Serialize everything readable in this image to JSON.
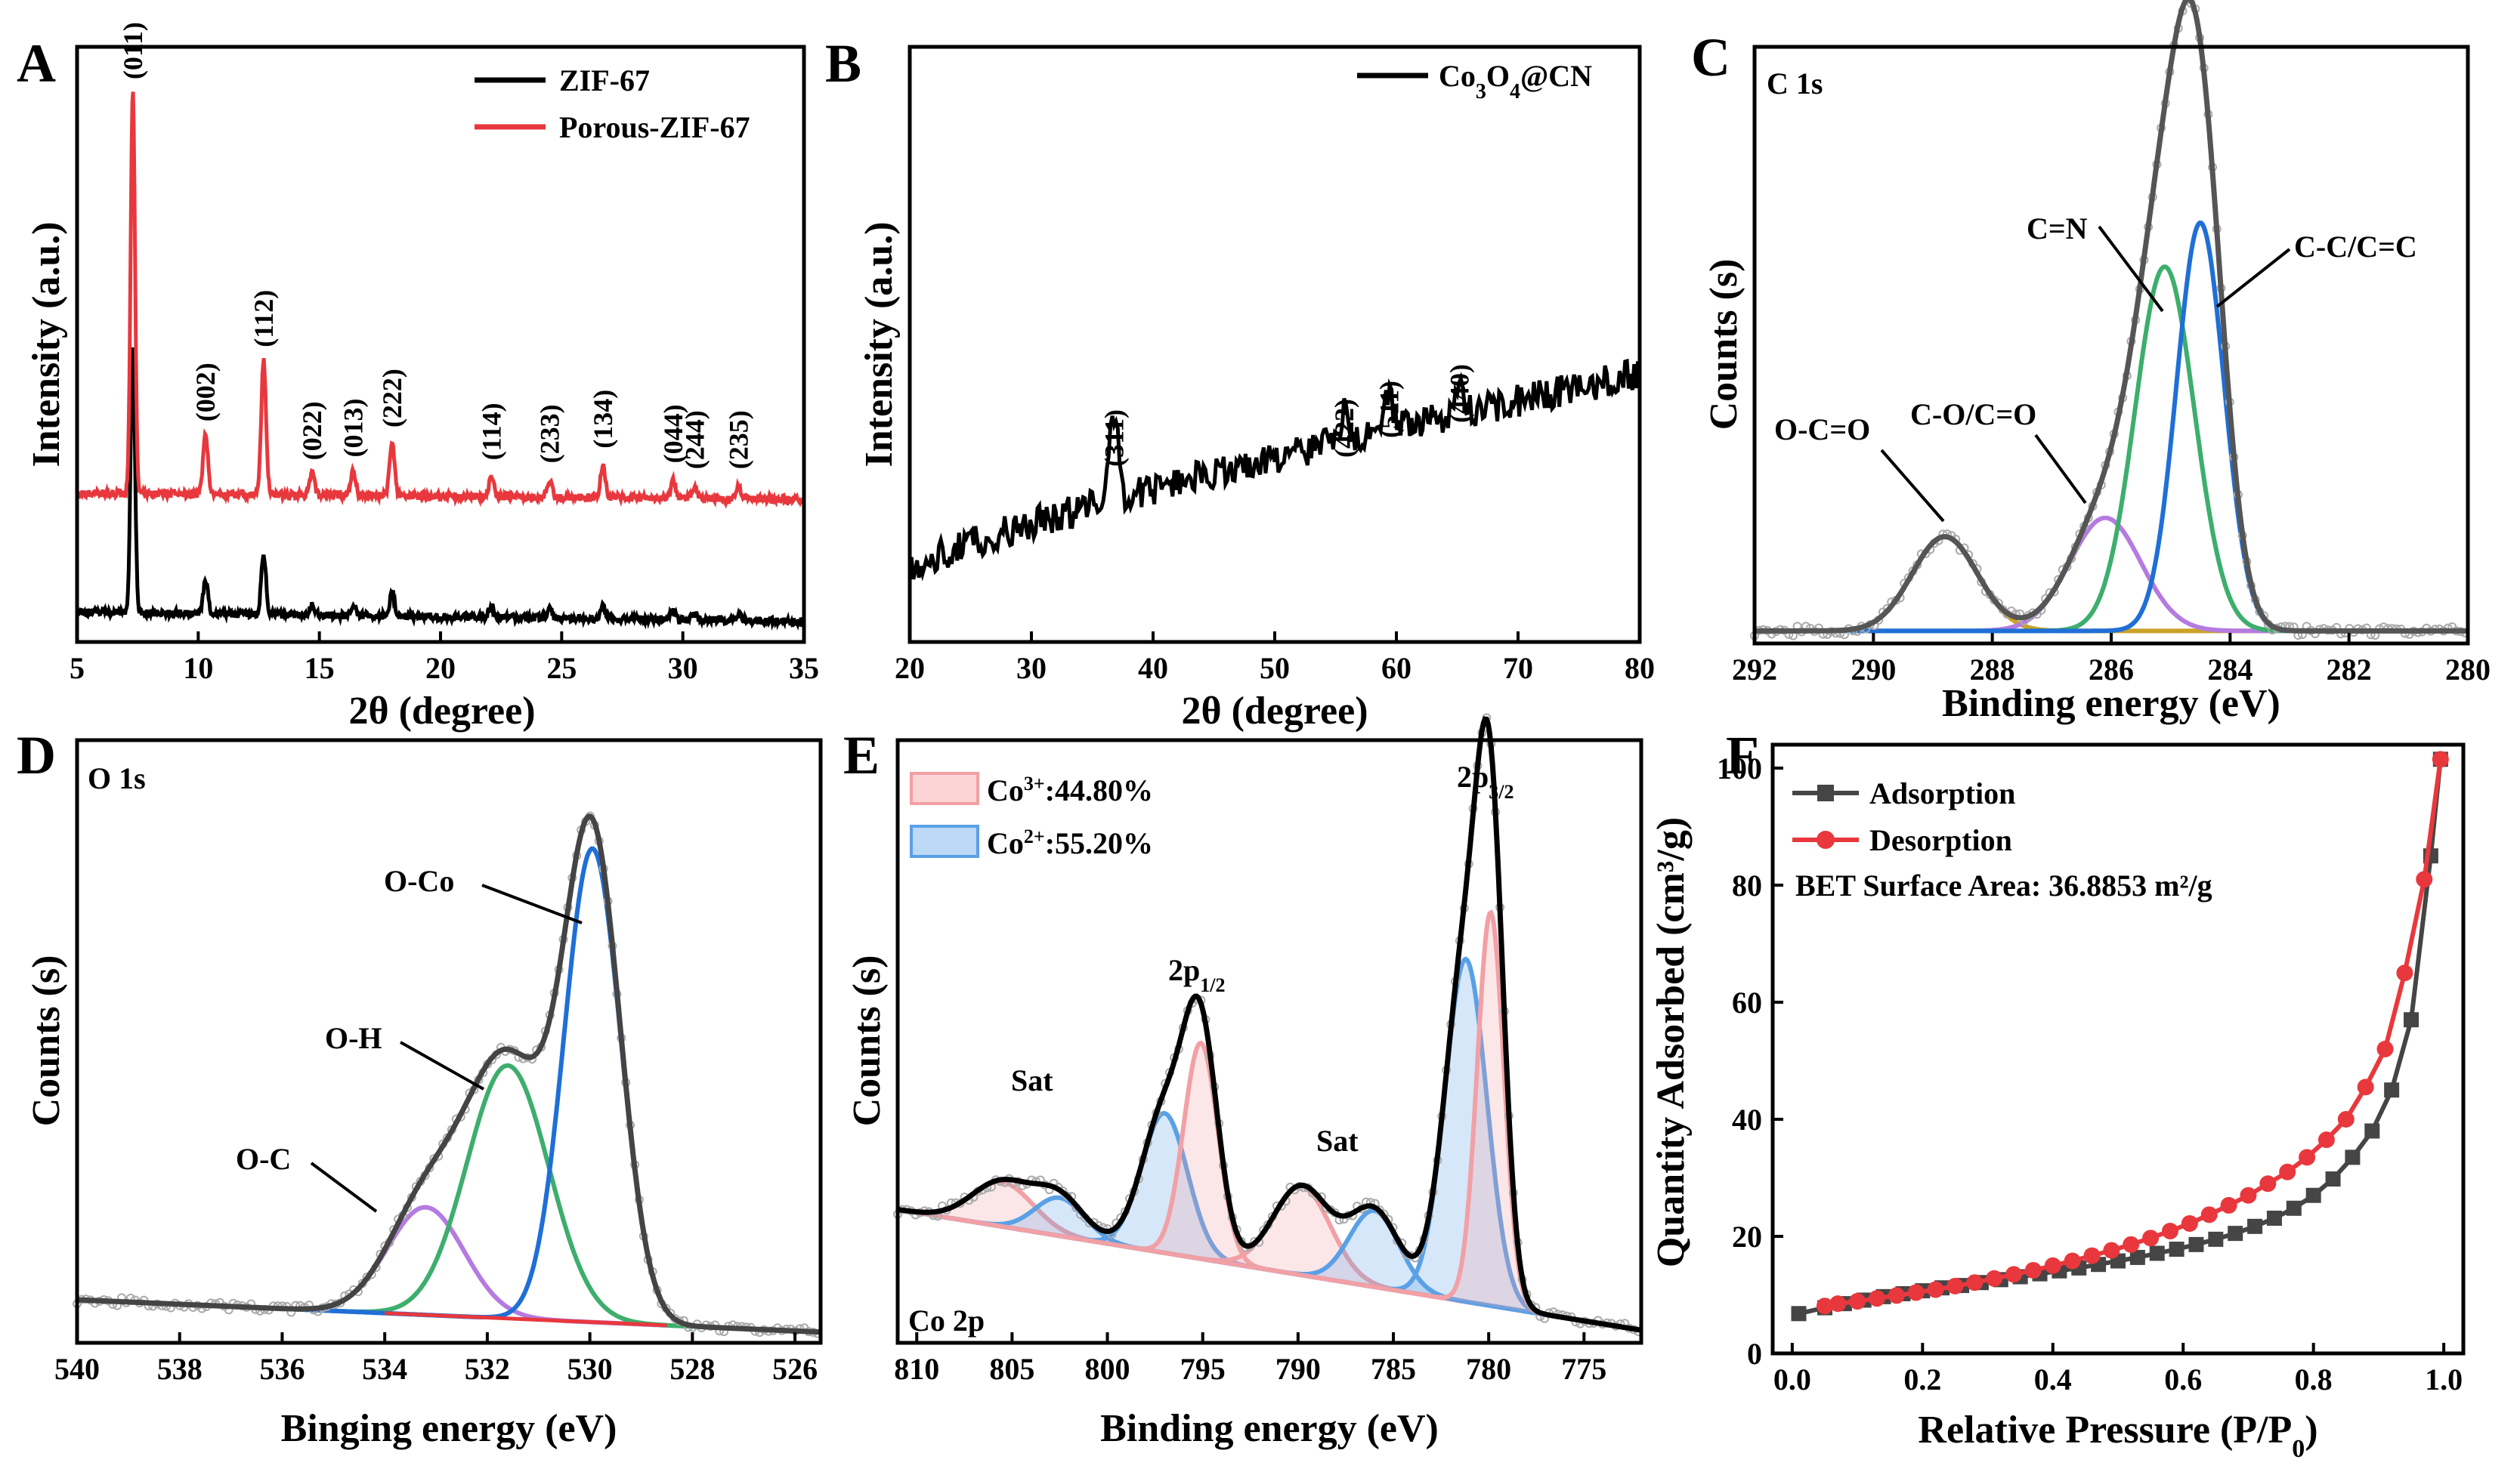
{
  "chart_data": [
    {
      "panel": "A",
      "type": "line",
      "xlabel": "2θ (degree)",
      "ylabel": "Intensity (a.u.)",
      "xlim": [
        5,
        35
      ],
      "xticks": [
        5,
        10,
        15,
        20,
        25,
        30,
        35
      ],
      "legend": [
        "ZIF-67",
        "Porous-ZIF-67"
      ],
      "colors": [
        "#000000",
        "#e8383d"
      ],
      "peak_labels": [
        {
          "label": "(011)",
          "x": 7.3
        },
        {
          "label": "(002)",
          "x": 10.3
        },
        {
          "label": "(112)",
          "x": 12.7
        },
        {
          "label": "(022)",
          "x": 14.7
        },
        {
          "label": "(013)",
          "x": 16.4
        },
        {
          "label": "(222)",
          "x": 18.0
        },
        {
          "label": "(114)",
          "x": 22.1
        },
        {
          "label": "(233)",
          "x": 24.5
        },
        {
          "label": "(134)",
          "x": 26.7
        },
        {
          "label": "(044)",
          "x": 29.6
        },
        {
          "label": "(244)",
          "x": 30.5
        },
        {
          "label": "(235)",
          "x": 32.3
        }
      ],
      "series": [
        {
          "name": "ZIF-67",
          "baseline": 1.0,
          "peaks": [
            [
              7.3,
              9.0
            ],
            [
              10.3,
              1.1
            ],
            [
              12.7,
              2.0
            ],
            [
              14.7,
              0.4
            ],
            [
              16.4,
              0.4
            ],
            [
              18.0,
              0.8
            ],
            [
              22.1,
              0.4
            ],
            [
              24.5,
              0.3
            ],
            [
              26.7,
              0.4
            ],
            [
              29.6,
              0.3
            ],
            [
              30.5,
              0.2
            ],
            [
              32.3,
              0.2
            ]
          ]
        },
        {
          "name": "Porous-ZIF-67",
          "baseline": 5.0,
          "peaks": [
            [
              7.3,
              13.5
            ],
            [
              10.3,
              2.0
            ],
            [
              12.7,
              4.5
            ],
            [
              14.7,
              0.7
            ],
            [
              16.4,
              0.8
            ],
            [
              18.0,
              1.8
            ],
            [
              22.1,
              0.7
            ],
            [
              24.5,
              0.6
            ],
            [
              26.7,
              1.1
            ],
            [
              29.6,
              0.6
            ],
            [
              30.5,
              0.4
            ],
            [
              32.3,
              0.4
            ]
          ]
        }
      ]
    },
    {
      "panel": "B",
      "type": "line",
      "xlabel": "2θ (degree)",
      "ylabel": "Intensity (a.u.)",
      "xlim": [
        20,
        80
      ],
      "xticks": [
        20,
        30,
        40,
        50,
        60,
        70,
        80
      ],
      "legend": [
        "Co₃O₄@CN"
      ],
      "colors": [
        "#000000"
      ],
      "peak_labels": [
        {
          "label": "(311)",
          "x": 36.8
        },
        {
          "label": "(422)",
          "x": 55.7
        },
        {
          "label": "(511)",
          "x": 59.4
        },
        {
          "label": "(440)",
          "x": 65.2
        }
      ]
    },
    {
      "panel": "C",
      "type": "line",
      "title": "C 1s",
      "xlabel": "Binding energy (eV)",
      "ylabel": "Counts (s)",
      "xlim": [
        292,
        280
      ],
      "xticks": [
        292,
        290,
        288,
        286,
        284,
        282,
        280
      ],
      "components": [
        {
          "label": "O-C=O",
          "center": 288.8,
          "height": 0.15,
          "width": 0.55,
          "color": "#c9a227"
        },
        {
          "label": "C-O/C=O",
          "center": 286.1,
          "height": 0.18,
          "width": 0.6,
          "color": "#b57be0"
        },
        {
          "label": "C=N",
          "center": 285.1,
          "height": 0.58,
          "width": 0.5,
          "color": "#3dae6c"
        },
        {
          "label": "C-C/C=C",
          "center": 284.5,
          "height": 0.65,
          "width": 0.4,
          "color": "#1f6fd6"
        }
      ],
      "envelope_color": "#555555"
    },
    {
      "panel": "D",
      "type": "line",
      "title": "O 1s",
      "xlabel": "Binging energy (eV)",
      "ylabel": "Counts (s)",
      "xlim": [
        540,
        525.5
      ],
      "xticks": [
        540,
        538,
        536,
        534,
        532,
        530,
        528,
        526
      ],
      "components": [
        {
          "label": "O-C",
          "center": 533.2,
          "height": 0.2,
          "width": 0.75,
          "color": "#b57be0"
        },
        {
          "label": "O-H",
          "center": 531.6,
          "height": 0.47,
          "width": 0.8,
          "color": "#3dae6c"
        },
        {
          "label": "O-Co",
          "center": 529.95,
          "height": 0.88,
          "width": 0.55,
          "color": "#1f6fd6"
        }
      ],
      "envelope_color": "#444444"
    },
    {
      "panel": "E",
      "type": "line",
      "title": "Co 2p",
      "xlabel": "Binding energy (eV)",
      "ylabel": "Counts (s)",
      "xlim": [
        811,
        772
      ],
      "xticks": [
        810,
        805,
        800,
        795,
        790,
        785,
        780,
        775
      ],
      "legend": [
        "Co³⁺:44.80%",
        "Co²⁺:55.20%"
      ],
      "annotations": [
        "Sat",
        "2p1/2",
        "Sat",
        "2p3/2"
      ],
      "components": [
        {
          "label": "Co³⁺",
          "center": 805.5,
          "height": 0.07,
          "width": 1.6,
          "color": "#f2a0a5"
        },
        {
          "label": "Co²⁺",
          "center": 802.5,
          "height": 0.06,
          "width": 1.3,
          "color": "#5aa0e6"
        },
        {
          "label": "Co²⁺",
          "center": 797.0,
          "height": 0.22,
          "width": 1.2,
          "color": "#5aa0e6"
        },
        {
          "label": "Co³⁺",
          "center": 795.1,
          "height": 0.34,
          "width": 0.9,
          "color": "#f2a0a5"
        },
        {
          "label": "Co³⁺",
          "center": 789.8,
          "height": 0.14,
          "width": 1.5,
          "color": "#f2a0a5"
        },
        {
          "label": "Co²⁺",
          "center": 786.0,
          "height": 0.12,
          "width": 1.3,
          "color": "#5aa0e6"
        },
        {
          "label": "Co²⁺",
          "center": 781.2,
          "height": 0.54,
          "width": 1.1,
          "color": "#5aa0e6"
        },
        {
          "label": "Co³⁺",
          "center": 779.9,
          "height": 0.62,
          "width": 0.7,
          "color": "#f2a0a5"
        }
      ],
      "envelope_color": "#000000"
    },
    {
      "panel": "F",
      "type": "line",
      "xlabel": "Relative Pressure (P/P0)",
      "ylabel": "Quantity Adsorbed (cm³/g)",
      "xlim": [
        -0.03,
        1.03
      ],
      "ylim": [
        0,
        104
      ],
      "xticks": [
        0.0,
        0.2,
        0.4,
        0.6,
        0.8,
        1.0
      ],
      "yticks": [
        0,
        20,
        40,
        60,
        80,
        100
      ],
      "annotation": "BET Surface Area: 36.8853 m²/g",
      "series": [
        {
          "name": "Adsorption",
          "color": "#454545",
          "marker": "square",
          "x": [
            0.01,
            0.05,
            0.08,
            0.11,
            0.14,
            0.17,
            0.2,
            0.23,
            0.26,
            0.29,
            0.32,
            0.35,
            0.38,
            0.41,
            0.44,
            0.47,
            0.5,
            0.53,
            0.56,
            0.59,
            0.62,
            0.65,
            0.68,
            0.71,
            0.74,
            0.77,
            0.8,
            0.83,
            0.86,
            0.89,
            0.92,
            0.95,
            0.98,
            0.995
          ],
          "values": [
            6.8,
            7.8,
            8.5,
            9.1,
            9.7,
            10.2,
            10.7,
            11.2,
            11.6,
            12.1,
            12.6,
            13.1,
            13.6,
            14.1,
            14.6,
            15.2,
            15.8,
            16.4,
            17.1,
            17.8,
            18.6,
            19.5,
            20.5,
            21.7,
            23.1,
            24.8,
            27.0,
            29.8,
            33.5,
            38.0,
            45.0,
            57.0,
            85.0,
            101.5
          ]
        },
        {
          "name": "Desorption",
          "color": "#e8383d",
          "marker": "circle",
          "x": [
            0.995,
            0.97,
            0.94,
            0.91,
            0.88,
            0.85,
            0.82,
            0.79,
            0.76,
            0.73,
            0.7,
            0.67,
            0.64,
            0.61,
            0.58,
            0.55,
            0.52,
            0.49,
            0.46,
            0.43,
            0.4,
            0.37,
            0.34,
            0.31,
            0.28,
            0.25,
            0.22,
            0.19,
            0.16,
            0.13,
            0.1,
            0.07,
            0.05
          ],
          "values": [
            101.5,
            81.0,
            65.0,
            52.0,
            45.5,
            40.0,
            36.5,
            33.5,
            31.0,
            29.0,
            27.0,
            25.3,
            23.7,
            22.2,
            20.9,
            19.7,
            18.6,
            17.6,
            16.7,
            15.8,
            15.0,
            14.2,
            13.5,
            12.8,
            12.1,
            11.5,
            10.9,
            10.4,
            9.9,
            9.4,
            8.9,
            8.5,
            8.1
          ]
        }
      ]
    }
  ],
  "labels": {
    "A": {
      "letter": "A",
      "ylabel": "Intensity (a.u.)",
      "xlabel": "2θ (degree)",
      "legend_1": "ZIF-67",
      "legend_2": "Porous-ZIF-67"
    },
    "B": {
      "letter": "B",
      "ylabel": "Intensity (a.u.)",
      "xlabel": "2θ (degree)",
      "legend_main": "Co",
      "legend_sub1": "3",
      "legend_mid": "O",
      "legend_sub2": "4",
      "legend_end": "@CN"
    },
    "C": {
      "letter": "C",
      "title": "C 1s",
      "ylabel": "Counts (s)",
      "xlabel": "Binding energy (eV)",
      "a1": "O-C=O",
      "a2": "C-O/C=O",
      "a3": "C=N",
      "a4": "C-C/C=C"
    },
    "D": {
      "letter": "D",
      "title": "O 1s",
      "ylabel": "Counts (s)",
      "xlabel": "Binging energy (eV)",
      "a1": "O-C",
      "a2": "O-H",
      "a3": "O-Co"
    },
    "E": {
      "letter": "E",
      "title": "Co 2p",
      "ylabel": "Counts (s)",
      "xlabel": "Binding energy (eV)",
      "leg1_pre": "Co",
      "leg1_sup": "3+",
      "leg1_post": ":44.80%",
      "leg2_pre": "Co",
      "leg2_sup": "2+",
      "leg2_post": ":55.20%",
      "sat1": "Sat",
      "sat2": "Sat",
      "p12_main": "2p",
      "p12_sub": "1/2",
      "p32_main": "2p",
      "p32_sub": "3/2"
    },
    "F": {
      "letter": "F",
      "ylabel": "Quantity Adsorbed (cm³/g)",
      "xlabel_main": "Relative Pressure (P/P",
      "xlabel_sub": "0",
      "xlabel_end": ")",
      "legend_1": "Adsorption",
      "legend_2": "Desorption",
      "bet": "BET Surface Area: 36.8853 m²/g"
    }
  }
}
